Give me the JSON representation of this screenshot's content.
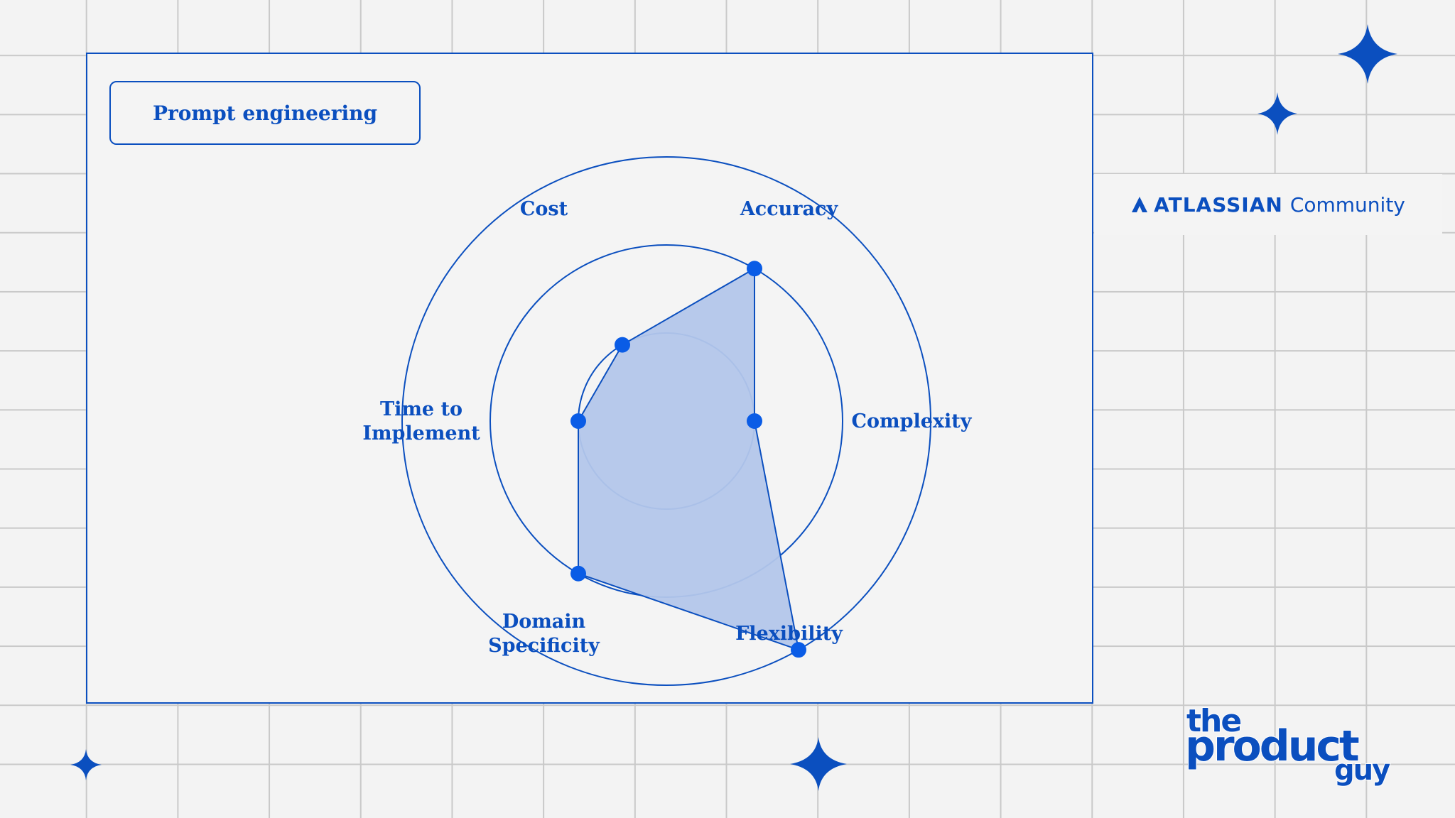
{
  "title": "Prompt engineering",
  "brand": {
    "part1": "ATLASSIAN",
    "part2": "Community"
  },
  "logo": {
    "line1": "the",
    "line2": "product",
    "line3": "guy"
  },
  "colors": {
    "accent": "#0b4fbf",
    "fill": "#b3c6ea",
    "point": "#0a5ce6",
    "background": "#f3f3f3"
  },
  "chart_data": {
    "type": "radar",
    "categories": [
      "Accuracy",
      "Complexity",
      "Flexibility",
      "Domain Specificity",
      "Time to Implement",
      "Cost"
    ],
    "axis_labels": [
      [
        "Accuracy"
      ],
      [
        "Complexity"
      ],
      [
        "Flexibility"
      ],
      [
        "Domain",
        "Specificity"
      ],
      [
        "Time to",
        "Implement"
      ],
      [
        "Cost"
      ]
    ],
    "rings": [
      1,
      2,
      3
    ],
    "max": 3,
    "values": [
      2,
      1,
      3,
      2,
      1,
      1
    ],
    "grid": true,
    "legend": "none"
  }
}
